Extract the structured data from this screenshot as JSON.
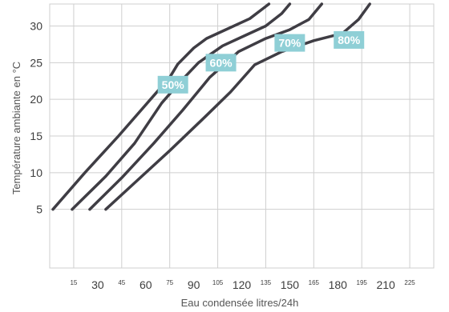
{
  "chart_data": {
    "type": "line",
    "title": "",
    "xlabel": "Eau condensée litres/24h",
    "ylabel": "Température ambiante en °C",
    "xlim": [
      0,
      240
    ],
    "ylim": [
      -3,
      33
    ],
    "grid": true,
    "x_ticks": [
      15,
      30,
      45,
      60,
      75,
      90,
      105,
      120,
      135,
      150,
      165,
      180,
      195,
      210,
      225
    ],
    "x_tick_labels": [
      "15",
      "30",
      "45",
      "60",
      "75",
      "90",
      "105",
      "120",
      "135",
      "150",
      "165",
      "180",
      "195",
      "210",
      "225"
    ],
    "y_ticks": [
      5,
      10,
      15,
      20,
      25,
      30
    ],
    "y_tick_labels": [
      "5",
      "10",
      "15",
      "20",
      "25",
      "30"
    ],
    "series": [
      {
        "name": "50%",
        "x": [
          2,
          22,
          43,
          63,
          75,
          80,
          90,
          98,
          110,
          125,
          134,
          137
        ],
        "y": [
          5,
          10,
          15,
          20,
          23,
          24.8,
          27,
          28.3,
          29.5,
          31,
          32.5,
          33
        ]
      },
      {
        "name": "60%",
        "x": [
          14,
          35,
          53,
          70,
          82,
          93,
          108,
          123,
          135,
          145,
          150
        ],
        "y": [
          5,
          9.5,
          14,
          19.5,
          22.5,
          25,
          27.3,
          28.8,
          30,
          31.7,
          33
        ]
      },
      {
        "name": "70%",
        "x": [
          25,
          45,
          65,
          83,
          100,
          118,
          135,
          150,
          162,
          170
        ],
        "y": [
          5,
          9.3,
          14,
          18.5,
          23,
          26.5,
          28.3,
          29.5,
          30.9,
          33
        ]
      },
      {
        "name": "80%",
        "x": [
          35,
          55,
          75,
          97,
          113,
          128,
          145,
          165,
          183,
          193,
          200
        ],
        "y": [
          5,
          9,
          13,
          17.6,
          21,
          24.7,
          26.5,
          28,
          29,
          30.9,
          33
        ]
      }
    ],
    "series_labels": [
      {
        "text": "50%",
        "x": 77,
        "y": 22
      },
      {
        "text": "60%",
        "x": 107,
        "y": 25
      },
      {
        "text": "70%",
        "x": 150,
        "y": 27.7
      },
      {
        "text": "80%",
        "x": 187,
        "y": 28.1
      }
    ],
    "colors": {
      "line": "#3f3d44",
      "label_bg": "#8fcfd6",
      "grid": "#cfcfcf",
      "label_text": "#ffffff"
    }
  }
}
